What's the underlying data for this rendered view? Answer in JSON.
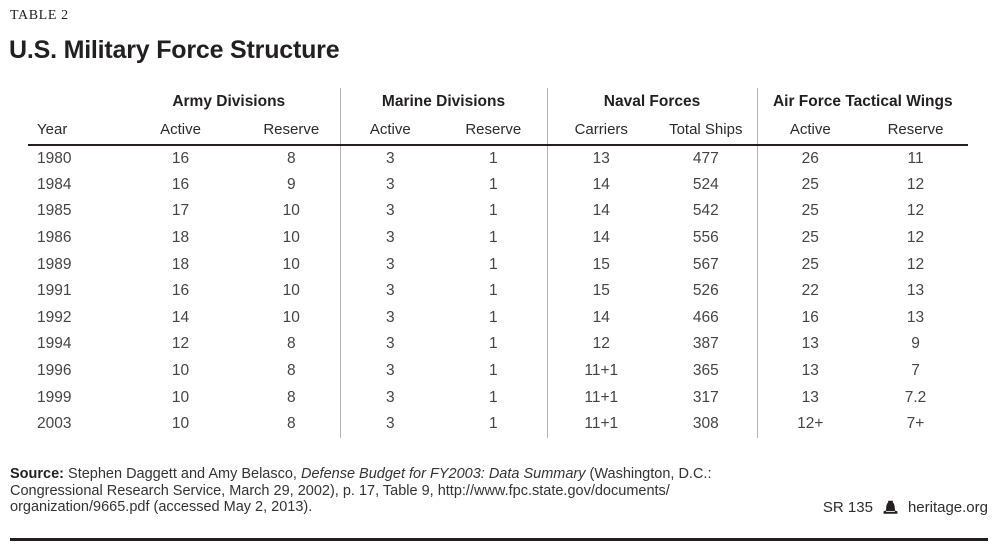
{
  "page": {
    "kicker": "TABLE 2",
    "title": "U.S. Military Force Structure"
  },
  "table": {
    "year_header": "Year",
    "groups": [
      {
        "label": "Army Divisions"
      },
      {
        "label": "Marine Divisions"
      },
      {
        "label": "Naval Forces"
      },
      {
        "label": "Air Force Tactical Wings"
      }
    ],
    "col_headers": [
      "Active",
      "Reserve",
      "Active",
      "Reserve",
      "Carriers",
      "Total Ships",
      "Active",
      "Reserve"
    ],
    "rows": [
      {
        "year": "1980",
        "values": [
          "16",
          "8",
          "3",
          "1",
          "13",
          "477",
          "26",
          "11"
        ]
      },
      {
        "year": "1984",
        "values": [
          "16",
          "9",
          "3",
          "1",
          "14",
          "524",
          "25",
          "12"
        ]
      },
      {
        "year": "1985",
        "values": [
          "17",
          "10",
          "3",
          "1",
          "14",
          "542",
          "25",
          "12"
        ]
      },
      {
        "year": "1986",
        "values": [
          "18",
          "10",
          "3",
          "1",
          "14",
          "556",
          "25",
          "12"
        ]
      },
      {
        "year": "1989",
        "values": [
          "18",
          "10",
          "3",
          "1",
          "15",
          "567",
          "25",
          "12"
        ]
      },
      {
        "year": "1991",
        "values": [
          "16",
          "10",
          "3",
          "1",
          "15",
          "526",
          "22",
          "13"
        ]
      },
      {
        "year": "1992",
        "values": [
          "14",
          "10",
          "3",
          "1",
          "14",
          "466",
          "16",
          "13"
        ]
      },
      {
        "year": "1994",
        "values": [
          "12",
          "8",
          "3",
          "1",
          "12",
          "387",
          "13",
          "9"
        ]
      },
      {
        "year": "1996",
        "values": [
          "10",
          "8",
          "3",
          "1",
          "11+1",
          "365",
          "13",
          "7"
        ]
      },
      {
        "year": "1999",
        "values": [
          "10",
          "8",
          "3",
          "1",
          "11+1",
          "317",
          "13",
          "7.2"
        ]
      },
      {
        "year": "2003",
        "values": [
          "10",
          "8",
          "3",
          "1",
          "11+1",
          "308",
          "12+",
          "7+"
        ]
      }
    ]
  },
  "footer": {
    "source": {
      "label": "Source:",
      "pre_italic": "Stephen Daggett and Amy Belasco,",
      "italic": "Defense Budget for FY2003: Data Summary",
      "post_italic": "(Washington, D.C.:",
      "line2": "Congressional Research Service, March 29, 2002), p. 17, Table 9, http://www.fpc.state.gov/documents/",
      "line3": "organization/9665.pdf (accessed May 2, 2013)."
    },
    "report_id": "SR 135",
    "site": "heritage.org",
    "logo_icon": "liberty-bell-icon"
  },
  "colors": {
    "text": "#231f20",
    "body_text": "#454545",
    "divider": "#b3b2b2",
    "rule": "#231f20"
  }
}
